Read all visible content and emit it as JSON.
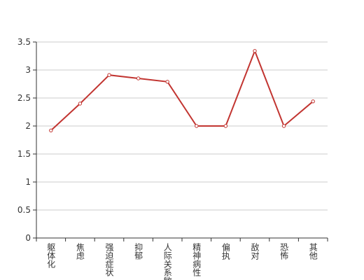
{
  "chart_data": {
    "type": "line",
    "categories": [
      "躯体化",
      "焦虑",
      "强迫症状",
      "抑郁",
      "人际关系敏感",
      "精神病性",
      "偏执",
      "敌对",
      "恐怖",
      "其他"
    ],
    "values": [
      1.92,
      2.4,
      2.91,
      2.85,
      2.79,
      2.0,
      2.0,
      3.34,
      2.0,
      2.44
    ],
    "color": "#c23531",
    "ylim": [
      0,
      3.5
    ],
    "yticks": [
      0,
      0.5,
      1,
      1.5,
      2,
      2.5,
      3,
      3.5
    ],
    "grid": true
  }
}
